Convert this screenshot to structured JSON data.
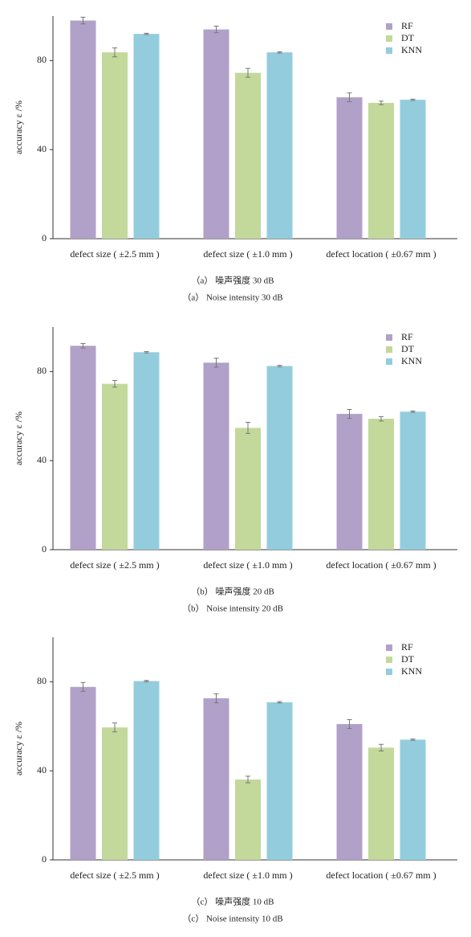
{
  "chart_data": [
    {
      "type": "bar",
      "ylabel": "accuracy ε /%",
      "caption_cn": "（a） 噪声强度 30 dB",
      "caption_en": "（a） Noise intensity 30 dB",
      "categories": [
        "defect size ( ±2.5 mm )",
        "defect size ( ±1.0 mm )",
        "defect location ( ±0.67 mm )"
      ],
      "series": [
        {
          "name": "RF",
          "color": "#b1a1c9",
          "values": [
            98,
            94,
            63.5
          ],
          "errors": [
            1.5,
            1.5,
            2
          ]
        },
        {
          "name": "DT",
          "color": "#c3d89b",
          "values": [
            83.7,
            74.5,
            61
          ],
          "errors": [
            2,
            2,
            0.8
          ]
        },
        {
          "name": "KNN",
          "color": "#93cddd",
          "values": [
            92,
            83.7,
            62.4
          ],
          "errors": [
            0.3,
            0.3,
            0.3
          ]
        }
      ],
      "ylim": [
        0,
        100
      ],
      "yticks": [
        0,
        40,
        80
      ],
      "legend": "upper right"
    },
    {
      "type": "bar",
      "ylabel": "accuracy ε /%",
      "caption_cn": "（b） 噪声强度 20 dB",
      "caption_en": "（b） Noise intensity 20 dB",
      "categories": [
        "defect size ( ±2.5 mm )",
        "defect size ( ±1.0 mm )",
        "defect location ( ±0.67 mm )"
      ],
      "series": [
        {
          "name": "RF",
          "color": "#b1a1c9",
          "values": [
            91.6,
            84,
            61
          ],
          "errors": [
            1,
            2,
            2
          ]
        },
        {
          "name": "DT",
          "color": "#c3d89b",
          "values": [
            74.5,
            54.7,
            58.8
          ],
          "errors": [
            1.5,
            2.5,
            1
          ]
        },
        {
          "name": "KNN",
          "color": "#93cddd",
          "values": [
            88.7,
            82.5,
            62
          ],
          "errors": [
            0.3,
            0.3,
            0.3
          ]
        }
      ],
      "ylim": [
        0,
        100
      ],
      "yticks": [
        0,
        40,
        80
      ],
      "legend": "upper right"
    },
    {
      "type": "bar",
      "ylabel": "accuracy ε /%",
      "caption_cn": "（c） 噪声强度 10 dB",
      "caption_en": "（c） Noise intensity 10 dB",
      "categories": [
        "defect size ( ±2.5 mm )",
        "defect size ( ±1.0 mm )",
        "defect location ( ±0.67 mm )"
      ],
      "series": [
        {
          "name": "RF",
          "color": "#b1a1c9",
          "values": [
            77.7,
            72.6,
            61
          ],
          "errors": [
            2,
            2,
            2
          ]
        },
        {
          "name": "DT",
          "color": "#c3d89b",
          "values": [
            59.5,
            36.1,
            50.4
          ],
          "errors": [
            2,
            1.5,
            1.5
          ]
        },
        {
          "name": "KNN",
          "color": "#93cddd",
          "values": [
            80.3,
            70.8,
            54
          ],
          "errors": [
            0.3,
            0.3,
            0.3
          ]
        }
      ],
      "ylim": [
        0,
        100
      ],
      "yticks": [
        0,
        40,
        80
      ],
      "legend": "upper right"
    }
  ]
}
